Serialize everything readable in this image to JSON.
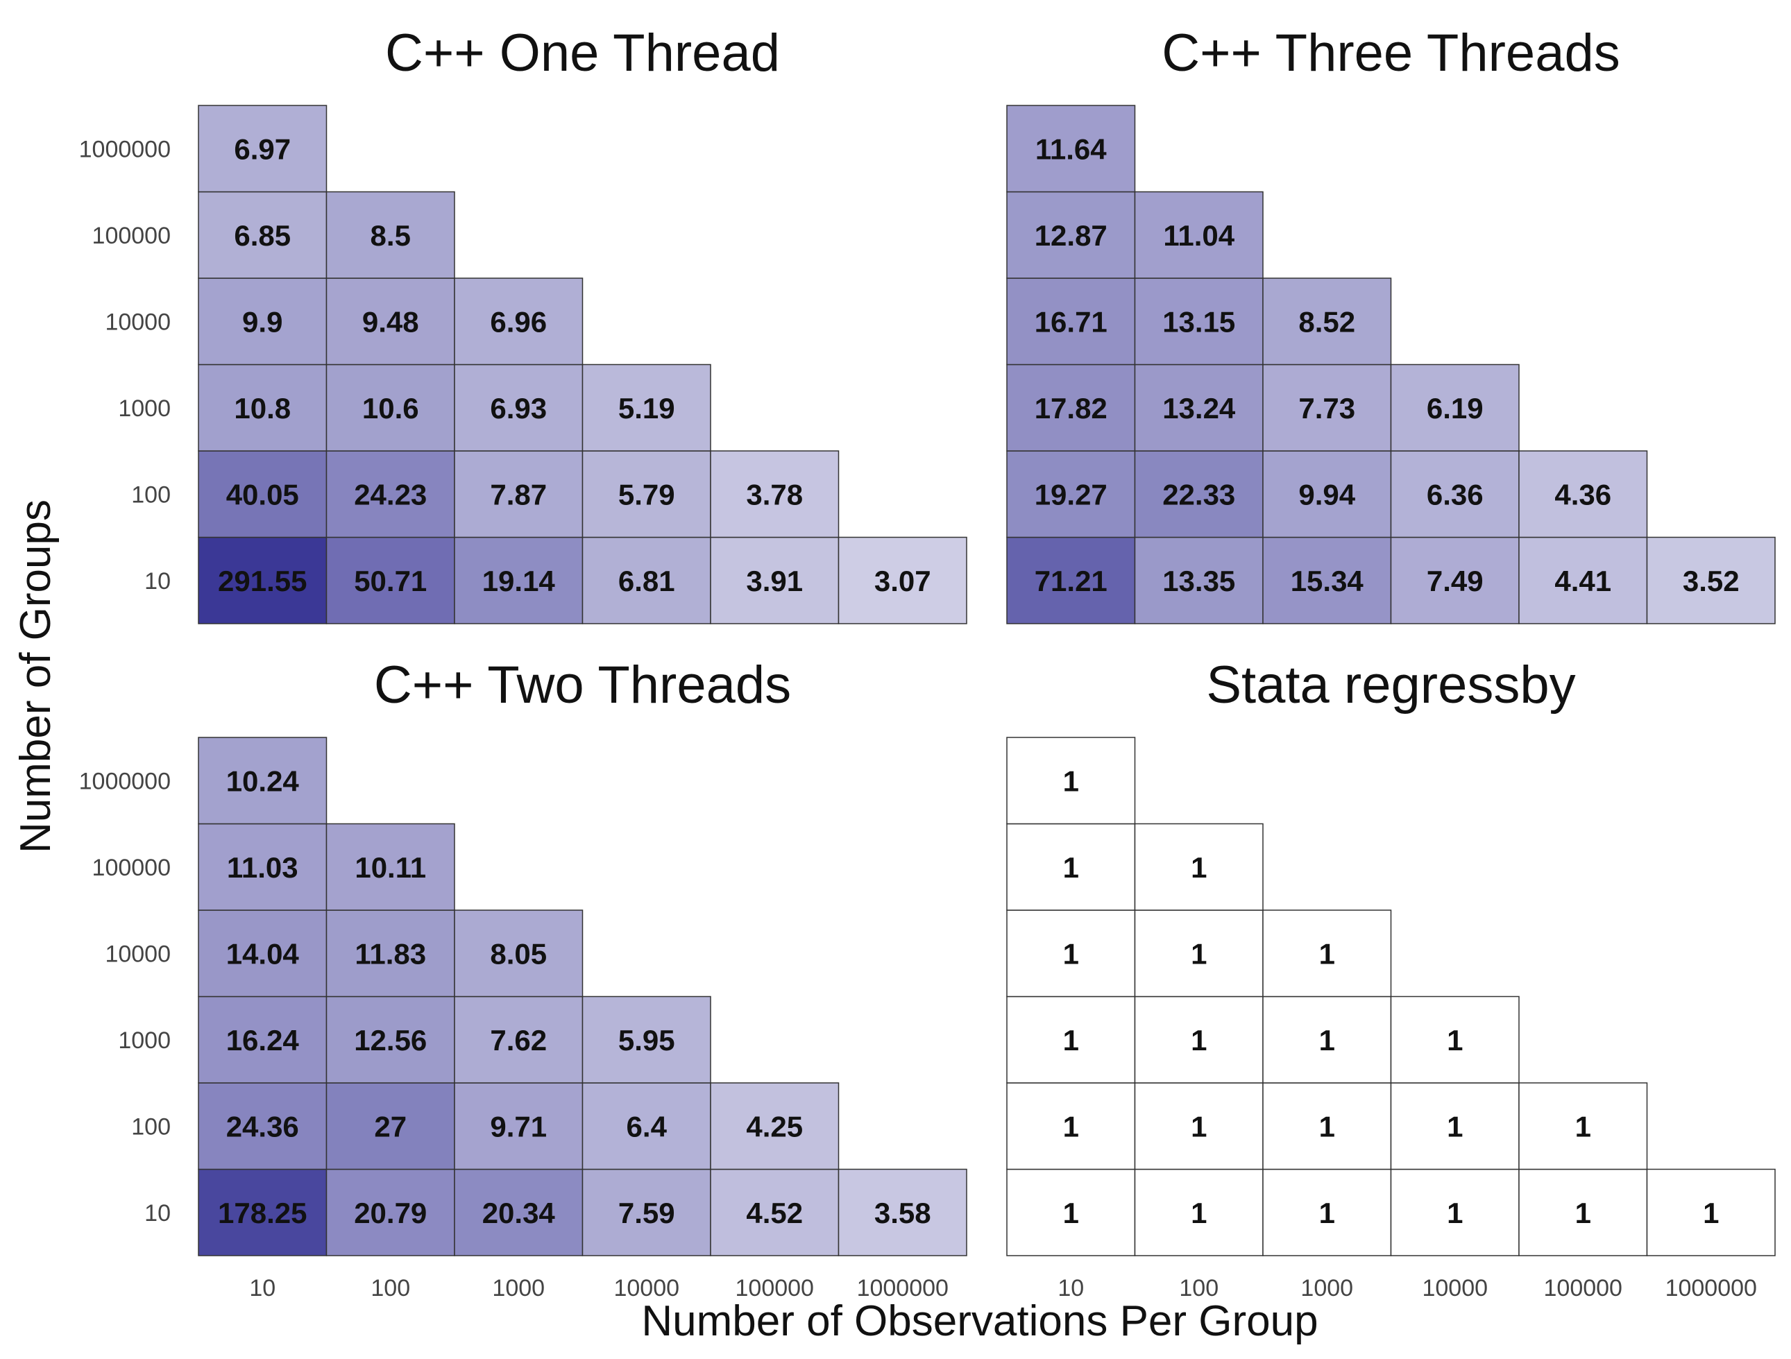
{
  "figure": {
    "xlabel": "Number of Observations Per Group",
    "ylabel": "Number of Groups"
  },
  "chart_data": [
    {
      "type": "heatmap",
      "title": "C++ One Thread",
      "x_categories": [
        "10",
        "100",
        "1000",
        "10000",
        "100000",
        "1000000"
      ],
      "y_categories": [
        "10",
        "100",
        "1000",
        "10000",
        "100000",
        "1000000"
      ],
      "cells": [
        [
          "291.55",
          "50.71",
          "19.14",
          "6.81",
          "3.91",
          "3.07"
        ],
        [
          "40.05",
          "24.23",
          "7.87",
          "5.79",
          "3.78"
        ],
        [
          "10.8",
          "10.6",
          "6.93",
          "5.19"
        ],
        [
          "9.9",
          "9.48",
          "6.96"
        ],
        [
          "6.85",
          "8.5"
        ],
        [
          "6.97"
        ]
      ]
    },
    {
      "type": "heatmap",
      "title": "C++ Three Threads",
      "x_categories": [
        "10",
        "100",
        "1000",
        "10000",
        "100000",
        "1000000"
      ],
      "y_categories": [
        "10",
        "100",
        "1000",
        "10000",
        "100000",
        "1000000"
      ],
      "cells": [
        [
          "71.21",
          "13.35",
          "15.34",
          "7.49",
          "4.41",
          "3.52"
        ],
        [
          "19.27",
          "22.33",
          "9.94",
          "6.36",
          "4.36"
        ],
        [
          "17.82",
          "13.24",
          "7.73",
          "6.19"
        ],
        [
          "16.71",
          "13.15",
          "8.52"
        ],
        [
          "12.87",
          "11.04"
        ],
        [
          "11.64"
        ]
      ]
    },
    {
      "type": "heatmap",
      "title": "C++ Two Threads",
      "x_categories": [
        "10",
        "100",
        "1000",
        "10000",
        "100000",
        "1000000"
      ],
      "y_categories": [
        "10",
        "100",
        "1000",
        "10000",
        "100000",
        "1000000"
      ],
      "cells": [
        [
          "178.25",
          "20.79",
          "20.34",
          "7.59",
          "4.52",
          "3.58"
        ],
        [
          "24.36",
          "27",
          "9.71",
          "6.4",
          "4.25"
        ],
        [
          "16.24",
          "12.56",
          "7.62",
          "5.95"
        ],
        [
          "14.04",
          "11.83",
          "8.05"
        ],
        [
          "11.03",
          "10.11"
        ],
        [
          "10.24"
        ]
      ]
    },
    {
      "type": "heatmap",
      "title": "Stata regressby",
      "x_categories": [
        "10",
        "100",
        "1000",
        "10000",
        "100000",
        "1000000"
      ],
      "y_categories": [
        "10",
        "100",
        "1000",
        "10000",
        "100000",
        "1000000"
      ],
      "cells": [
        [
          "1",
          "1",
          "1",
          "1",
          "1",
          "1"
        ],
        [
          "1",
          "1",
          "1",
          "1",
          "1"
        ],
        [
          "1",
          "1",
          "1",
          "1"
        ],
        [
          "1",
          "1",
          "1"
        ],
        [
          "1",
          "1"
        ],
        [
          "1"
        ]
      ]
    }
  ],
  "colors": {
    "low": "#ffffff",
    "high": "#3a3796",
    "cell_border": "#333333",
    "text": "#111111",
    "tick_text": "#444444"
  }
}
